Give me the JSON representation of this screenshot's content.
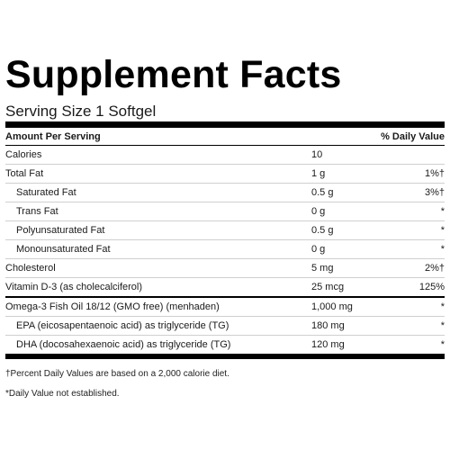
{
  "title": "Supplement Facts",
  "serving_size": "Serving Size 1 Softgel",
  "header": {
    "amount_per_serving": "Amount Per Serving",
    "daily_value": "% Daily Value"
  },
  "rows": [
    {
      "name": "Calories",
      "amount": "10",
      "dv": ""
    },
    {
      "name": "Total Fat",
      "amount": "1 g",
      "dv": "1%†"
    },
    {
      "name": "Saturated Fat",
      "amount": "0.5 g",
      "dv": "3%†"
    },
    {
      "name": "Trans Fat",
      "amount": "0 g",
      "dv": "*"
    },
    {
      "name": "Polyunsaturated Fat",
      "amount": "0.5 g",
      "dv": "*"
    },
    {
      "name": "Monounsaturated Fat",
      "amount": "0 g",
      "dv": "*"
    },
    {
      "name": "Cholesterol",
      "amount": "5 mg",
      "dv": "2%†"
    },
    {
      "name": "Vitamin D-3 (as cholecalciferol)",
      "amount": "25 mcg",
      "dv": "125%"
    },
    {
      "name": "Omega-3 Fish Oil 18/12 (GMO free) (menhaden)",
      "amount": "1,000 mg",
      "dv": "*"
    },
    {
      "name": "EPA (eicosapentaenoic acid) as triglyceride (TG)",
      "amount": "180 mg",
      "dv": "*"
    },
    {
      "name": "DHA (docosahexaenoic acid) as triglyceride (TG)",
      "amount": "120 mg",
      "dv": "*"
    }
  ],
  "footnotes": {
    "percent_dv": "†Percent Daily Values are based on a 2,000 calorie diet.",
    "not_established": "*Daily Value not established."
  }
}
